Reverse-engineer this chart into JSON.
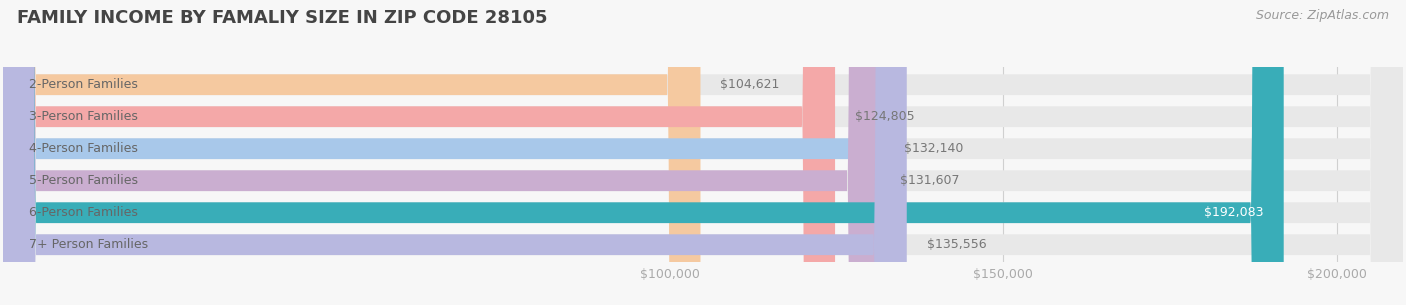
{
  "title": "FAMILY INCOME BY FAMALIY SIZE IN ZIP CODE 28105",
  "source": "Source: ZipAtlas.com",
  "categories": [
    "2-Person Families",
    "3-Person Families",
    "4-Person Families",
    "5-Person Families",
    "6-Person Families",
    "7+ Person Families"
  ],
  "values": [
    104621,
    124805,
    132140,
    131607,
    192083,
    135556
  ],
  "bar_colors": [
    "#f5c9a0",
    "#f4a8a8",
    "#a8c8ea",
    "#caaed0",
    "#39adb8",
    "#b8b8e0"
  ],
  "value_labels": [
    "$104,621",
    "$124,805",
    "$132,140",
    "$131,607",
    "$192,083",
    "$135,556"
  ],
  "value_label_colors": [
    "#777777",
    "#777777",
    "#777777",
    "#777777",
    "#ffffff",
    "#777777"
  ],
  "xlim_min": 0,
  "xlim_max": 210000,
  "xticks": [
    100000,
    150000,
    200000
  ],
  "xtick_labels": [
    "$100,000",
    "$150,000",
    "$200,000"
  ],
  "background_color": "#f7f7f7",
  "bar_background_color": "#e8e8e8",
  "title_fontsize": 13,
  "source_fontsize": 9,
  "label_fontsize": 9,
  "value_fontsize": 9,
  "tick_fontsize": 9,
  "bar_height": 0.65,
  "label_color": "#666666",
  "grid_color": "#d0d0d0"
}
